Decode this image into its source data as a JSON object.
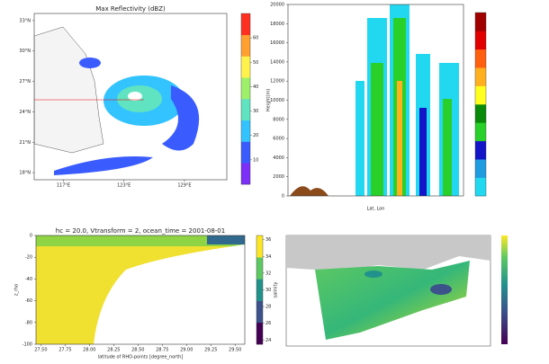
{
  "chart_data": [
    {
      "type": "heatmap",
      "title": "Max Reflectivity (dBZ)",
      "xlim": [
        114.1,
        133.2
      ],
      "ylim": [
        17.3,
        33.7
      ],
      "xticks": [
        {
          "value": 117,
          "label": "117°E"
        },
        {
          "value": 123,
          "label": "123°E"
        },
        {
          "value": 129,
          "label": "129°E"
        }
      ],
      "yticks": [
        {
          "value": 18,
          "label": "18°N"
        },
        {
          "value": 21,
          "label": "21°N"
        },
        {
          "value": 24,
          "label": "24°N"
        },
        {
          "value": 27,
          "label": "27°N"
        },
        {
          "value": 30,
          "label": "30°N"
        },
        {
          "value": 33,
          "label": "33°N"
        }
      ],
      "colorbar": {
        "lim": [
          0,
          70
        ],
        "ticks": [
          10,
          20,
          30,
          40,
          50,
          60
        ],
        "colors": [
          "#7b2ff7",
          "#3a5cff",
          "#33c3ff",
          "#5fe3c0",
          "#9ef06a",
          "#fff24d",
          "#ffa030",
          "#ff3020"
        ]
      }
    },
    {
      "type": "heatmap",
      "xlabel": "Lat, Lon",
      "ylabel": "Height(m)",
      "ylim": [
        0,
        20000
      ],
      "yticks": [
        0,
        2000,
        4000,
        6000,
        8000,
        10000,
        12000,
        14000,
        16000,
        18000,
        20000
      ],
      "colorbar": {
        "lim": [
          0,
          10
        ],
        "ticks": [],
        "colors": [
          "#22d8f0",
          "#1f9be0",
          "#1414c8",
          "#2ad02a",
          "#0a8a0a",
          "#ffff20",
          "#ffb020",
          "#ff6010",
          "#e00000",
          "#a00000"
        ]
      }
    },
    {
      "type": "heatmap",
      "title": "hc = 20.0, Vtransform = 2, ocean_time = 2001-08-01",
      "xlabel": "latitude of RHO-points [degree_north]",
      "ylabel": "z_rho",
      "xlim": [
        27.45,
        29.6
      ],
      "ylim": [
        -100,
        0
      ],
      "xticks": [
        {
          "value": 27.5,
          "label": "27.50"
        },
        {
          "value": 27.75,
          "label": "27.75"
        },
        {
          "value": 28,
          "label": "28.00"
        },
        {
          "value": 28.25,
          "label": "28.25"
        },
        {
          "value": 28.5,
          "label": "28.50"
        },
        {
          "value": 28.75,
          "label": "28.75"
        },
        {
          "value": 29,
          "label": "29.00"
        },
        {
          "value": 29.25,
          "label": "29.25"
        },
        {
          "value": 29.5,
          "label": "29.50"
        }
      ],
      "yticks": [
        -100,
        -80,
        -60,
        -40,
        -20,
        0
      ],
      "colorbar": {
        "label": "salinity",
        "lim": [
          23.5,
          36.5
        ],
        "ticks": [
          24,
          26,
          28,
          30,
          32,
          34,
          36
        ],
        "colors": [
          "#440154",
          "#3b528b",
          "#21918c",
          "#5ec962",
          "#fde725"
        ]
      }
    }
  ]
}
